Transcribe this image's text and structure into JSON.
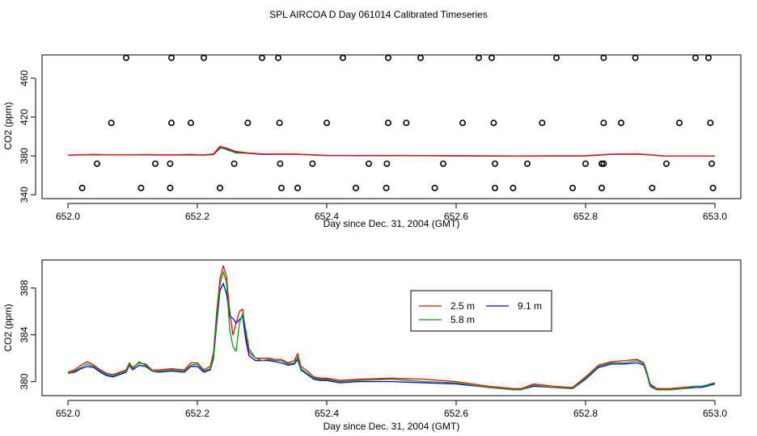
{
  "figure_title": "SPL AIRCOA D  Day 061014  Calibrated Timeseries",
  "chart_data": [
    {
      "type": "line",
      "panel": "top",
      "xlabel": "Day since Dec. 31, 2004 (GMT)",
      "ylabel": "CO2 (ppm)",
      "xlim": [
        652.0,
        653.0
      ],
      "ylim": [
        336,
        484
      ],
      "x_ticks": [
        "652.0",
        "652.2",
        "652.4",
        "652.6",
        "652.8",
        "653.0"
      ],
      "y_ticks": [
        "340",
        "380",
        "420",
        "460"
      ],
      "grid": false,
      "series": [
        {
          "color": "#0000ff",
          "x": [
            652.0,
            652.04,
            652.08,
            652.12,
            652.16,
            652.19,
            652.21,
            652.225,
            652.235,
            652.245,
            652.26,
            652.28,
            652.3,
            652.35,
            652.4,
            652.5,
            652.6,
            652.7,
            652.8,
            652.84,
            652.88,
            652.9,
            652.92,
            653.0
          ],
          "y": [
            380.8,
            381.2,
            381.0,
            381.1,
            380.9,
            381.1,
            380.8,
            381.5,
            388.0,
            387.5,
            384.0,
            382.5,
            381.6,
            381.7,
            380.3,
            380.2,
            380.0,
            379.7,
            380.0,
            381.6,
            381.8,
            381.0,
            380.0,
            380.0
          ]
        },
        {
          "color": "#00a000",
          "x": [
            652.0,
            652.04,
            652.08,
            652.12,
            652.16,
            652.19,
            652.21,
            652.225,
            652.235,
            652.245,
            652.26,
            652.28,
            652.3,
            652.35,
            652.4,
            652.5,
            652.6,
            652.7,
            652.8,
            652.84,
            652.88,
            652.9,
            652.92,
            653.0
          ],
          "y": [
            380.8,
            381.3,
            381.0,
            381.3,
            381.0,
            381.2,
            380.9,
            381.8,
            389.0,
            386.5,
            383.0,
            382.8,
            381.8,
            381.8,
            380.5,
            380.4,
            380.1,
            379.8,
            380.1,
            381.7,
            381.9,
            381.1,
            380.0,
            380.0
          ]
        },
        {
          "color": "#ff0000",
          "x": [
            652.0,
            652.04,
            652.08,
            652.12,
            652.16,
            652.19,
            652.21,
            652.225,
            652.235,
            652.245,
            652.26,
            652.28,
            652.3,
            652.35,
            652.4,
            652.5,
            652.6,
            652.7,
            652.8,
            652.84,
            652.88,
            652.9,
            652.92,
            653.0
          ],
          "y": [
            380.8,
            381.5,
            381.0,
            381.4,
            381.1,
            381.5,
            381.0,
            382.0,
            390.0,
            388.0,
            384.5,
            383.0,
            382.0,
            381.9,
            380.6,
            380.5,
            380.2,
            379.9,
            380.2,
            381.8,
            382.0,
            381.2,
            380.0,
            380.0
          ]
        },
        {
          "type": "scatter",
          "marker": "open-circle",
          "color": "#000000",
          "x": [
            652.09,
            652.16,
            652.21,
            652.3,
            652.325,
            652.425,
            652.495,
            652.545,
            652.635,
            652.655,
            652.755,
            652.828,
            652.877,
            652.97,
            652.99,
            652.067,
            652.16,
            652.19,
            652.278,
            652.327,
            652.4,
            652.495,
            652.523,
            652.61,
            652.658,
            652.733,
            652.828,
            652.855,
            652.945,
            652.993,
            652.045,
            652.135,
            652.158,
            652.257,
            652.328,
            652.378,
            652.465,
            652.493,
            652.58,
            652.66,
            652.71,
            652.8,
            652.825,
            652.828,
            652.925,
            652.995,
            652.022,
            652.113,
            652.158,
            652.235,
            652.33,
            652.355,
            652.445,
            652.492,
            652.567,
            652.66,
            652.688,
            652.78,
            652.825,
            652.903,
            652.997
          ],
          "y": [
            481,
            481,
            481,
            481,
            481,
            481,
            481,
            481,
            481,
            481,
            481,
            481,
            481,
            481,
            481,
            414,
            414,
            414,
            414,
            414,
            414,
            414,
            414,
            414,
            414,
            414,
            414,
            414,
            414,
            414,
            372,
            372,
            372,
            372,
            372,
            372,
            372,
            372,
            372,
            372,
            372,
            372,
            372,
            372,
            372,
            372,
            347,
            347,
            347,
            347,
            347,
            347,
            347,
            347,
            347,
            347,
            347,
            347,
            347,
            347,
            347
          ]
        }
      ]
    },
    {
      "type": "line",
      "panel": "bottom",
      "xlabel": "Day since Dec. 31, 2004 (GMT)",
      "ylabel": "CO2 (ppm)",
      "xlim": [
        652.0,
        653.0
      ],
      "ylim": [
        378.8,
        390.4
      ],
      "x_ticks": [
        "652.0",
        "652.2",
        "652.4",
        "652.6",
        "652.8",
        "653.0"
      ],
      "y_ticks": [
        "380",
        "384",
        "388"
      ],
      "grid": false,
      "legend": {
        "placement": "top-center",
        "entries": [
          "2.5 m",
          "9.1 m",
          "5.8 m"
        ]
      },
      "series": [
        {
          "name": "2.5 m",
          "color": "#ff0000",
          "x": [
            652.0,
            652.01,
            652.02,
            652.03,
            652.04,
            652.05,
            652.06,
            652.07,
            652.08,
            652.09,
            652.095,
            652.1,
            652.11,
            652.12,
            652.13,
            652.14,
            652.16,
            652.18,
            652.19,
            652.2,
            652.21,
            652.22,
            652.225,
            652.23,
            652.235,
            652.24,
            652.245,
            652.25,
            652.255,
            652.26,
            652.265,
            652.27,
            652.275,
            652.28,
            652.29,
            652.3,
            652.31,
            652.32,
            652.33,
            652.34,
            652.35,
            652.355,
            652.36,
            652.37,
            652.38,
            652.39,
            652.4,
            652.42,
            652.45,
            652.5,
            652.55,
            652.6,
            652.65,
            652.69,
            652.7,
            652.72,
            652.75,
            652.78,
            652.8,
            652.82,
            652.84,
            652.86,
            652.88,
            652.89,
            652.895,
            652.9,
            652.91,
            652.92,
            652.93,
            652.95,
            652.97,
            652.98,
            653.0
          ],
          "y": [
            380.8,
            381.0,
            381.4,
            381.7,
            381.4,
            381.0,
            380.7,
            380.6,
            380.8,
            381.0,
            381.6,
            381.2,
            381.6,
            381.5,
            381.0,
            381.0,
            381.1,
            381.0,
            381.6,
            381.6,
            381.0,
            381.3,
            382.5,
            386.0,
            388.8,
            389.9,
            389.0,
            386.0,
            384.0,
            385.0,
            386.0,
            386.2,
            384.0,
            382.5,
            382.0,
            382.0,
            382.0,
            381.9,
            381.9,
            381.6,
            381.8,
            382.4,
            381.3,
            380.9,
            380.4,
            380.3,
            380.3,
            380.1,
            380.2,
            380.3,
            380.2,
            380.0,
            379.6,
            379.4,
            379.4,
            379.8,
            379.6,
            379.5,
            380.4,
            381.4,
            381.7,
            381.8,
            381.9,
            381.6,
            380.8,
            379.8,
            379.4,
            379.4,
            379.4,
            379.5,
            379.6,
            379.6,
            379.9
          ]
        },
        {
          "name": "9.1 m",
          "color": "#0000ff",
          "x": [
            652.0,
            652.01,
            652.02,
            652.03,
            652.04,
            652.05,
            652.06,
            652.07,
            652.08,
            652.09,
            652.095,
            652.1,
            652.11,
            652.12,
            652.13,
            652.14,
            652.16,
            652.18,
            652.19,
            652.2,
            652.21,
            652.22,
            652.225,
            652.23,
            652.235,
            652.24,
            652.245,
            652.25,
            652.255,
            652.26,
            652.265,
            652.27,
            652.275,
            652.28,
            652.29,
            652.3,
            652.31,
            652.32,
            652.33,
            652.34,
            652.35,
            652.355,
            652.36,
            652.37,
            652.38,
            652.39,
            652.4,
            652.42,
            652.45,
            652.5,
            652.55,
            652.6,
            652.65,
            652.69,
            652.7,
            652.72,
            652.75,
            652.78,
            652.8,
            652.82,
            652.84,
            652.86,
            652.88,
            652.89,
            652.895,
            652.9,
            652.91,
            652.92,
            652.93,
            652.95,
            652.97,
            652.98,
            653.0
          ],
          "y": [
            380.7,
            380.8,
            381.1,
            381.3,
            381.2,
            380.8,
            380.5,
            380.4,
            380.6,
            380.8,
            381.4,
            381.0,
            381.4,
            381.3,
            380.9,
            380.8,
            380.9,
            380.8,
            381.3,
            381.3,
            380.8,
            381.0,
            382.0,
            385.0,
            387.8,
            388.4,
            387.5,
            385.6,
            385.4,
            385.0,
            385.3,
            385.6,
            383.5,
            382.2,
            381.8,
            381.8,
            381.8,
            381.7,
            381.6,
            381.4,
            381.5,
            381.9,
            381.0,
            380.6,
            380.2,
            380.1,
            380.1,
            379.9,
            380.0,
            380.0,
            379.9,
            379.8,
            379.5,
            379.3,
            379.3,
            379.6,
            379.5,
            379.4,
            380.2,
            381.2,
            381.5,
            381.5,
            381.6,
            381.4,
            380.6,
            379.6,
            379.3,
            379.3,
            379.3,
            379.4,
            379.5,
            379.5,
            379.8
          ]
        },
        {
          "name": "5.8 m",
          "color": "#00a000",
          "x": [
            652.0,
            652.01,
            652.02,
            652.03,
            652.04,
            652.05,
            652.06,
            652.07,
            652.08,
            652.09,
            652.095,
            652.1,
            652.11,
            652.12,
            652.13,
            652.14,
            652.16,
            652.18,
            652.19,
            652.2,
            652.21,
            652.22,
            652.225,
            652.23,
            652.235,
            652.24,
            652.245,
            652.25,
            652.255,
            652.26,
            652.265,
            652.27,
            652.275,
            652.28,
            652.29,
            652.3,
            652.31,
            652.32,
            652.33,
            652.34,
            652.35,
            652.355,
            652.36,
            652.37,
            652.38,
            652.39,
            652.4,
            652.42,
            652.45,
            652.5,
            652.55,
            652.6,
            652.65,
            652.69,
            652.7,
            652.72,
            652.75,
            652.78,
            652.8,
            652.82,
            652.84,
            652.86,
            652.88,
            652.89,
            652.895,
            652.9,
            652.91,
            652.92,
            652.93,
            652.95,
            652.97,
            652.98,
            653.0
          ],
          "y": [
            380.7,
            380.9,
            381.2,
            381.5,
            381.3,
            380.9,
            380.6,
            380.5,
            380.7,
            380.9,
            381.5,
            381.1,
            381.7,
            381.4,
            380.9,
            380.9,
            381.0,
            380.9,
            381.4,
            381.5,
            380.9,
            381.1,
            382.2,
            385.5,
            388.3,
            389.4,
            388.5,
            384.5,
            383.0,
            382.6,
            385.0,
            385.8,
            384.4,
            382.8,
            382.0,
            381.8,
            381.9,
            381.8,
            381.8,
            381.5,
            381.6,
            382.1,
            381.1,
            380.7,
            380.3,
            380.2,
            380.2,
            380.0,
            380.1,
            380.2,
            380.0,
            379.9,
            379.5,
            379.3,
            379.3,
            379.7,
            379.5,
            379.4,
            380.3,
            381.3,
            381.6,
            381.6,
            381.8,
            381.5,
            380.7,
            379.7,
            379.3,
            379.3,
            379.3,
            379.4,
            379.6,
            379.6,
            379.9
          ]
        }
      ]
    }
  ]
}
